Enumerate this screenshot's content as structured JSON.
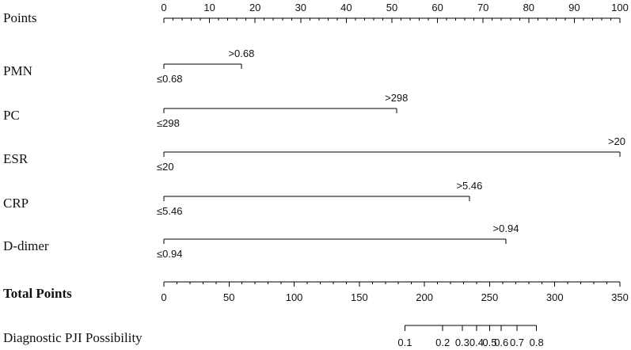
{
  "chart_data": {
    "type": "nomogram",
    "points_axis": {
      "label": "Points",
      "range": [
        0,
        100
      ],
      "major_ticks": [
        0,
        10,
        20,
        30,
        40,
        50,
        60,
        70,
        80,
        90,
        100
      ],
      "minor_step": 2
    },
    "predictors": [
      {
        "name": "PMN",
        "low_label": "≤0.68",
        "high_label": ">0.68",
        "points": 17
      },
      {
        "name": "PC",
        "low_label": "≤298",
        "high_label": ">298",
        "points": 51
      },
      {
        "name": "ESR",
        "low_label": "≤20",
        "high_label": ">20",
        "points": 100
      },
      {
        "name": "CRP",
        "low_label": "≤5.46",
        "high_label": ">5.46",
        "points": 67
      },
      {
        "name": "D-dimer",
        "low_label": "≤0.94",
        "high_label": ">0.94",
        "points": 75
      }
    ],
    "total_points_axis": {
      "label": "Total Points",
      "range": [
        0,
        350
      ],
      "major_ticks": [
        0,
        50,
        100,
        150,
        200,
        250,
        300,
        350
      ],
      "minor_step": 10
    },
    "probability_axis": {
      "label": "Diagnostic PJI Possibility",
      "ticks": [
        {
          "label": "0.1",
          "total_points": 185
        },
        {
          "label": "0.2",
          "total_points": 214
        },
        {
          "label": "0.3",
          "total_points": 229
        },
        {
          "label": "0.4",
          "total_points": 240
        },
        {
          "label": "0.5",
          "total_points": 250
        },
        {
          "label": "0.6",
          "total_points": 259
        },
        {
          "label": "0.7",
          "total_points": 271
        },
        {
          "label": "0.8",
          "total_points": 286
        }
      ]
    }
  }
}
